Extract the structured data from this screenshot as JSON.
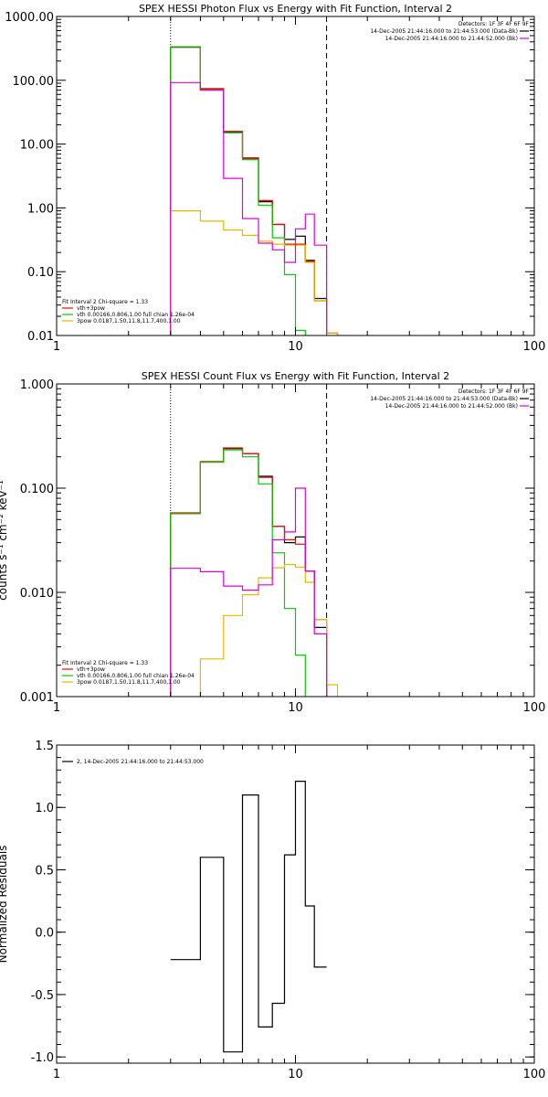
{
  "chart_data": [
    {
      "type": "line",
      "title": "SPEX HESSI Photon Flux vs Energy with Fit Function, Interval 2",
      "xscale": "log",
      "yscale": "log",
      "xlim": [
        1,
        100
      ],
      "ylim": [
        0.01,
        1000
      ],
      "x_ticks": [
        "1",
        "10",
        "100"
      ],
      "y_ticks": [
        "0.01",
        "0.10",
        "1.00",
        "10.00",
        "100.00",
        "1000.00"
      ],
      "info_lines": [
        {
          "text": "Detectors: 1F 3F 4F 6F 9F",
          "color": ""
        },
        {
          "text": "14-Dec-2005 21:44:16.000 to 21:44:53.000 (Data-Bk)",
          "color": "#000000"
        },
        {
          "text": "14-Dec-2005 21:44:16.000 to 21:44:52.000 (Bk)",
          "color": "#dd00dd"
        }
      ],
      "legend": [
        {
          "text": "Fit Interval 2   Chi-square = 1.33",
          "color": ""
        },
        {
          "text": "vth+3pow",
          "color": "#ff0000"
        },
        {
          "text": "vth 0.00166,0.806,1.00  full chian 1.26e-04",
          "color": "#00cc00"
        },
        {
          "text": "3pow 0.0187,1.50,11.8,11.7,400,1.00",
          "color": "#e6b800"
        }
      ],
      "vlines": [
        {
          "x": 3.0,
          "style": "dotted"
        },
        {
          "x": 13.5,
          "style": "dashed"
        }
      ],
      "bin_edges": [
        3.0,
        4.0,
        5.0,
        6.0,
        7.0,
        8.0,
        9.0,
        10.0,
        11.0,
        12.0,
        13.5,
        15.0
      ],
      "series": [
        {
          "name": "Data-Bk",
          "color": "#000000",
          "values": [
            330,
            73,
            15.5,
            6.0,
            1.25,
            0.55,
            0.32,
            0.36,
            0.15,
            0.038,
            0.011
          ]
        },
        {
          "name": "vth+3pow",
          "color": "#ff0000",
          "values": [
            335,
            74,
            15.8,
            6.1,
            1.3,
            0.55,
            0.27,
            0.27,
            0.145,
            0.035,
            0.011
          ]
        },
        {
          "name": "vth",
          "color": "#00cc00",
          "values": [
            335,
            71,
            15.0,
            5.7,
            1.1,
            0.34,
            0.09,
            0.012,
            null,
            null,
            null
          ]
        },
        {
          "name": "3pow",
          "color": "#e6b800",
          "values": [
            0.9,
            0.62,
            0.45,
            0.37,
            0.3,
            0.27,
            0.26,
            0.26,
            0.14,
            0.035,
            0.011
          ]
        },
        {
          "name": "Bk",
          "color": "#dd00dd",
          "values": [
            92,
            70,
            2.9,
            0.68,
            0.28,
            0.22,
            0.14,
            0.47,
            0.8,
            0.26,
            null
          ]
        }
      ]
    },
    {
      "type": "line",
      "title": "SPEX HESSI Count Flux vs Energy with Fit Function, Interval 2",
      "ylabel": "counts s⁻¹ cm⁻² keV⁻¹",
      "xscale": "log",
      "yscale": "log",
      "xlim": [
        1,
        100
      ],
      "ylim": [
        0.001,
        1
      ],
      "x_ticks": [
        "1",
        "10",
        "100"
      ],
      "y_ticks": [
        "0.001",
        "0.010",
        "0.100",
        "1.000"
      ],
      "info_lines": [
        {
          "text": "Detectors: 1F 3F 4F 6F 9F",
          "color": ""
        },
        {
          "text": "14-Dec-2005 21:44:16.000 to 21:44:53.000 (Data-Bk)",
          "color": "#000000"
        },
        {
          "text": "14-Dec-2005 21:44:16.000 to 21:44:52.000 (Bk)",
          "color": "#dd00dd"
        }
      ],
      "legend": [
        {
          "text": "Fit Interval 2   Chi-square = 1.33",
          "color": ""
        },
        {
          "text": "vth+3pow",
          "color": "#ff0000"
        },
        {
          "text": "vth 0.00166,0.806,1.00  full chian 1.26e-04",
          "color": "#00cc00"
        },
        {
          "text": "3pow 0.0187,1.50,11.8,11.7,400,1.00",
          "color": "#e6b800"
        }
      ],
      "vlines": [
        {
          "x": 3.0,
          "style": "dotted"
        },
        {
          "x": 13.5,
          "style": "dashed"
        }
      ],
      "bin_edges": [
        3.0,
        4.0,
        5.0,
        6.0,
        7.0,
        8.0,
        9.0,
        10.0,
        11.0,
        12.0,
        13.5,
        15.0
      ],
      "series": [
        {
          "name": "Data-Bk",
          "color": "#000000",
          "values": [
            0.057,
            0.178,
            0.24,
            0.215,
            0.13,
            0.043,
            0.03,
            0.034,
            0.016,
            0.0046,
            null
          ]
        },
        {
          "name": "vth+3pow",
          "color": "#ff0000",
          "values": [
            0.058,
            0.18,
            0.243,
            0.215,
            0.127,
            0.043,
            0.032,
            0.029,
            0.016,
            0.0055,
            null
          ]
        },
        {
          "name": "vth",
          "color": "#00cc00",
          "values": [
            0.057,
            0.178,
            0.233,
            0.2,
            0.11,
            0.024,
            0.007,
            0.0025,
            null,
            null,
            null
          ]
        },
        {
          "name": "3pow",
          "color": "#e6b800",
          "values": [
            null,
            0.0023,
            0.006,
            0.0095,
            0.0138,
            0.0172,
            0.0185,
            0.0175,
            0.0125,
            0.0055,
            0.0013
          ]
        },
        {
          "name": "Bk",
          "color": "#dd00dd",
          "values": [
            0.017,
            0.0158,
            0.0115,
            0.0105,
            0.0118,
            0.032,
            0.038,
            0.1,
            0.016,
            0.004,
            null
          ]
        }
      ]
    },
    {
      "type": "line",
      "ylabel": "Normalized Residuals",
      "xscale": "log",
      "yscale": "linear",
      "xlim": [
        1,
        100
      ],
      "ylim": [
        -1.05,
        1.5
      ],
      "x_ticks": [
        "1",
        "10",
        "100"
      ],
      "y_ticks": [
        "-1.0",
        "-0.5",
        "0.0",
        "0.5",
        "1.0",
        "1.5"
      ],
      "y_tick_values": [
        -1.0,
        -0.5,
        0.0,
        0.5,
        1.0,
        1.5
      ],
      "legend": [
        {
          "text": "2, 14-Dec-2005 21:44:16.000 to 21:44:53.000",
          "color": "#000000"
        }
      ],
      "bin_edges": [
        3.0,
        4.0,
        5.0,
        6.0,
        7.0,
        8.0,
        9.0,
        10.0,
        11.0,
        12.0,
        13.5
      ],
      "series": [
        {
          "name": "",
          "color": "#000000",
          "values": [
            -0.22,
            0.6,
            -0.96,
            1.1,
            -0.76,
            -0.57,
            0.62,
            1.21,
            0.21,
            -0.28
          ]
        }
      ]
    }
  ]
}
